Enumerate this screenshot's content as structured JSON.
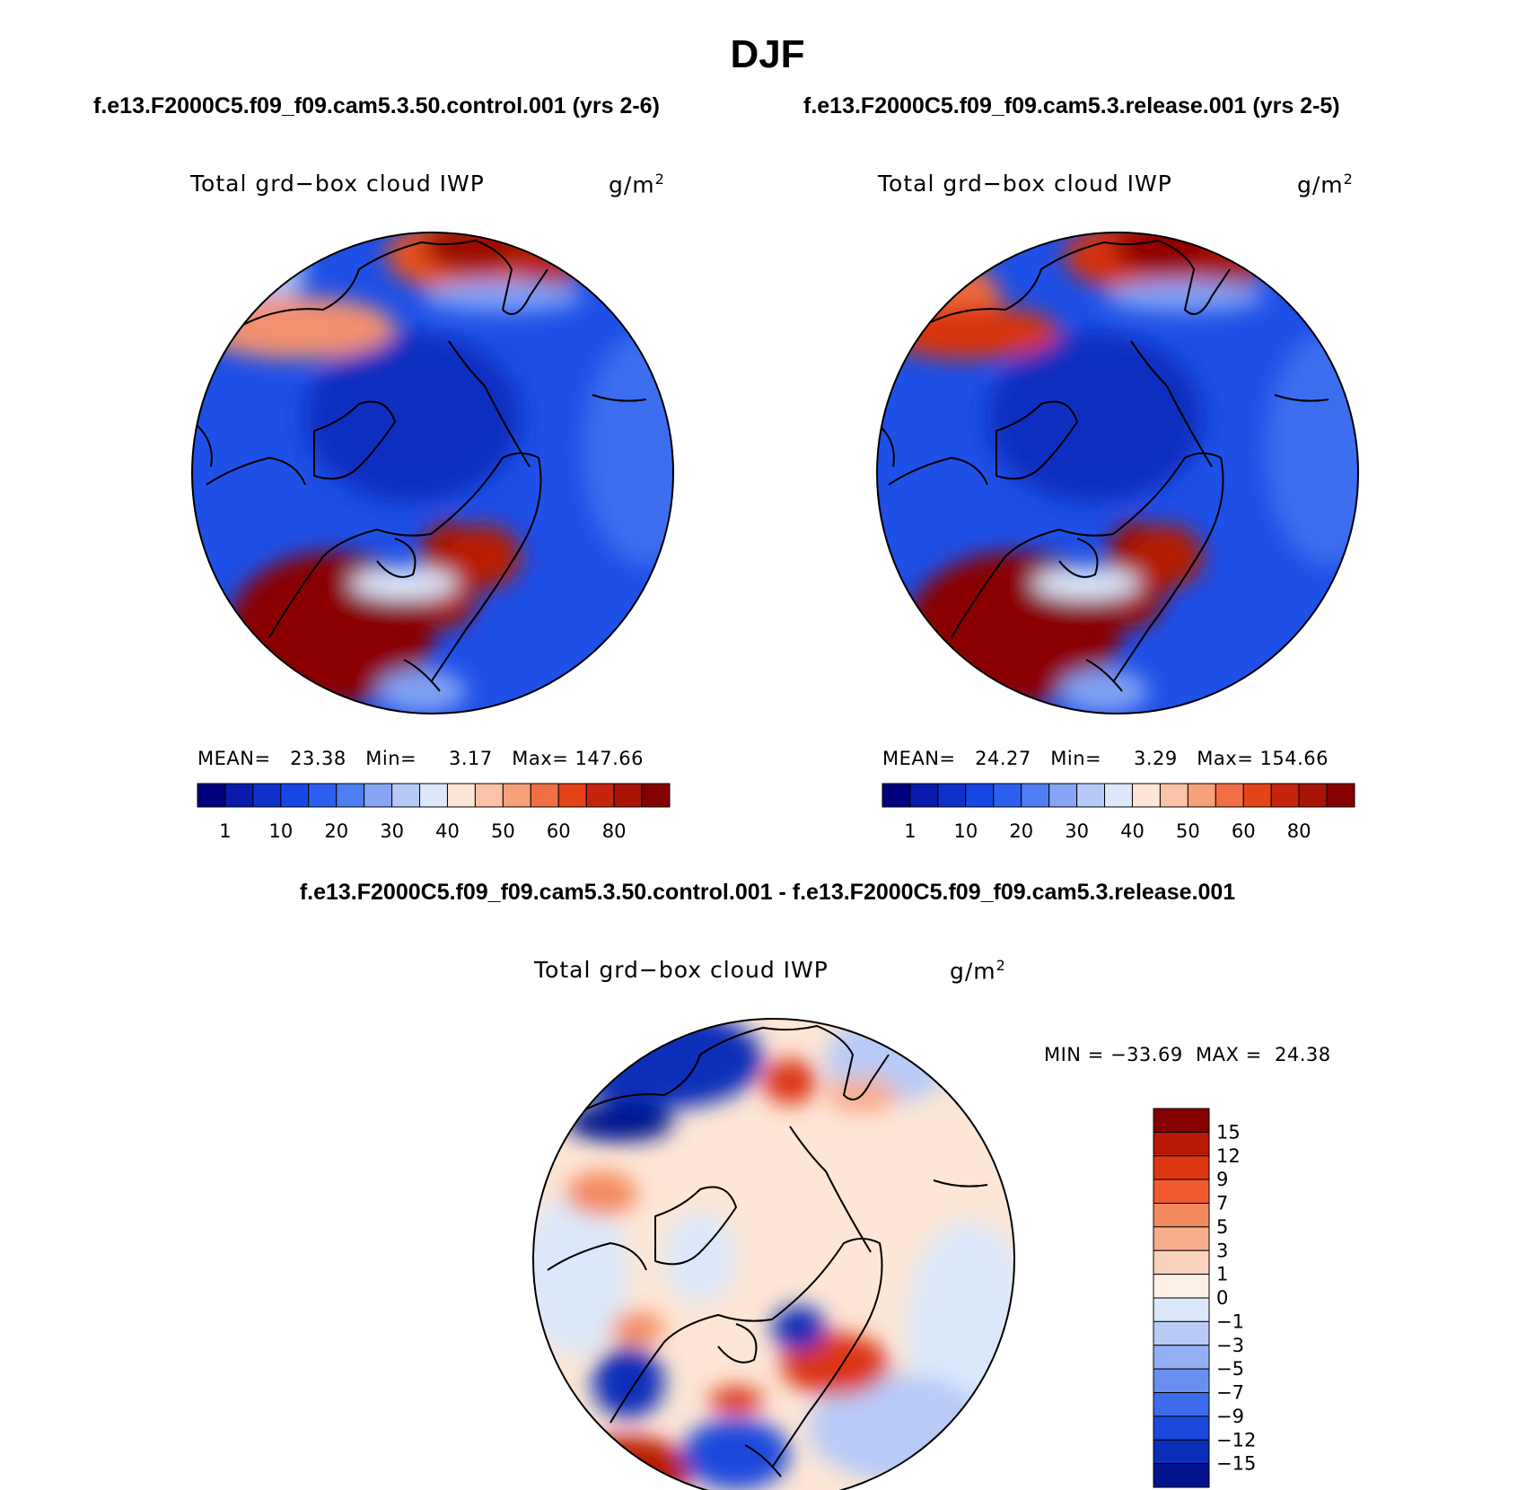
{
  "chart_data": {
    "title": "DJF",
    "panels": [
      {
        "id": "control",
        "type": "heatmap",
        "projection": "north-polar-stereographic",
        "case_title": "f.e13.F2000C5.f09_f09.cam5.3.50.control.001 (yrs 2-6)",
        "variable_label": "Total grd−box cloud IWP",
        "units": "g/m",
        "units_exponent": "2",
        "stats": {
          "mean_label": "MEAN=",
          "mean": "23.38",
          "min_label": "Min=",
          "min": "3.17",
          "max_label": "Max=",
          "max": "147.66"
        }
      },
      {
        "id": "release",
        "type": "heatmap",
        "projection": "north-polar-stereographic",
        "case_title": "f.e13.F2000C5.f09_f09.cam5.3.release.001 (yrs 2-5)",
        "variable_label": "Total grd−box cloud IWP",
        "units": "g/m",
        "units_exponent": "2",
        "stats": {
          "mean_label": "MEAN=",
          "mean": "24.27",
          "min_label": "Min=",
          "min": "3.29",
          "max_label": "Max=",
          "max": "154.66"
        }
      },
      {
        "id": "difference",
        "type": "heatmap",
        "projection": "north-polar-stereographic",
        "case_title": "f.e13.F2000C5.f09_f09.cam5.3.50.control.001 - f.e13.F2000C5.f09_f09.cam5.3.release.001",
        "variable_label": "Total grd−box cloud IWP",
        "units": "g/m",
        "units_exponent": "2",
        "stats_text": "MIN = −33.69  MAX =  24.38"
      }
    ],
    "colorbar_main": {
      "orientation": "horizontal",
      "tick_labels": [
        "1",
        "10",
        "20",
        "30",
        "40",
        "50",
        "60",
        "80"
      ],
      "colors": [
        "#00007f",
        "#0a1aaa",
        "#0f30cc",
        "#1746e6",
        "#2c5ff0",
        "#4f7ef2",
        "#87a5f5",
        "#b6caf7",
        "#dde8fb",
        "#fde6d5",
        "#fbc3a5",
        "#f7a07a",
        "#f26f45",
        "#e54418",
        "#c8230c",
        "#a81406",
        "#850000"
      ]
    },
    "colorbar_diff": {
      "orientation": "vertical",
      "tick_labels": [
        "15",
        "12",
        "9",
        "7",
        "5",
        "3",
        "1",
        "0",
        "−1",
        "−3",
        "−5",
        "−7",
        "−9",
        "−12",
        "−15"
      ],
      "colors": [
        "#850000",
        "#b81a06",
        "#dc3612",
        "#ef5a2e",
        "#f4895f",
        "#f8ad8d",
        "#fbd2bd",
        "#fdf0e6",
        "#dbe8fb",
        "#b8cbf7",
        "#93aff5",
        "#6a8ff2",
        "#3f6ced",
        "#1c48dc",
        "#0c2db8",
        "#03148f"
      ]
    }
  }
}
